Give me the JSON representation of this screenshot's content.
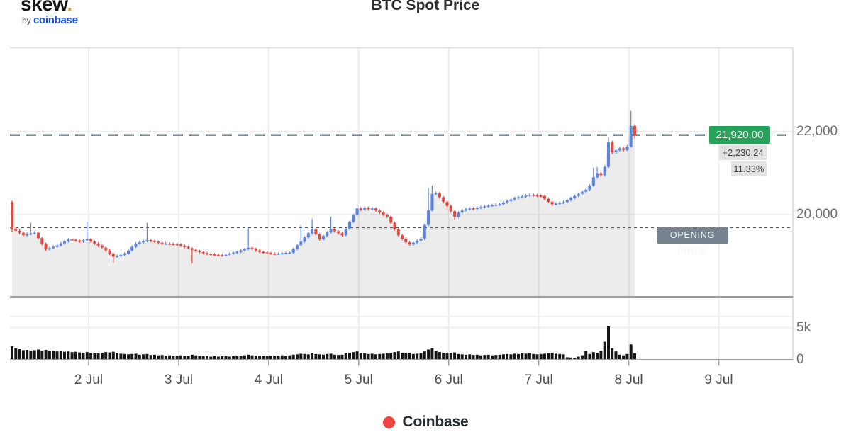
{
  "header": {
    "logo_word": "skew",
    "logo_dot": ".",
    "logo_by": "by ",
    "logo_brand": "coinbase",
    "title": "BTC Spot Price"
  },
  "price_panel": {
    "current_price_label": "21,920.00",
    "change_label": "+2,230.24",
    "change_pct_label": "11.33%",
    "opening_price_label": "OPENING PRICE"
  },
  "legend": {
    "series_label": "Coinbase"
  },
  "colors": {
    "candle_up": "#5c84e0",
    "candle_down": "#e5463e",
    "volume_bar": "#151515",
    "current_price_badge": "#27a25a",
    "change_badge_bg": "#e3e3e3",
    "opening_badge_bg": "#76838e",
    "legend_dot": "#ee4540",
    "coinbase_blue": "#1652f0",
    "logo_dot": "#e8a33d",
    "current_price_line": "#37474f",
    "opening_price_line": "#3a3a3a"
  },
  "chart_data": {
    "type": "candlestick",
    "title": "BTC Spot Price",
    "series_name": "Coinbase",
    "interval_hours": 1,
    "x_axis_day_labels": [
      "2 Jul",
      "3 Jul",
      "4 Jul",
      "5 Jul",
      "6 Jul",
      "7 Jul",
      "8 Jul",
      "9 Jul"
    ],
    "price_axis": {
      "ticks": [
        {
          "value": 22000,
          "label": "22,000"
        },
        {
          "value": 20000,
          "label": "20,000"
        }
      ]
    },
    "volume_axis": {
      "ticks": [
        {
          "value": 5000,
          "label": "5k"
        },
        {
          "value": 0,
          "label": "0"
        }
      ]
    },
    "current_price": 21920.0,
    "price_change": 2230.24,
    "price_change_pct": 11.33,
    "opening_price": 19690,
    "ohlcv": [
      [
        20300,
        20340,
        19580,
        19660,
        2100
      ],
      [
        19660,
        19700,
        19575,
        19610,
        1800
      ],
      [
        19610,
        19645,
        19525,
        19560,
        1650
      ],
      [
        19560,
        19595,
        19465,
        19500,
        1500
      ],
      [
        19500,
        19565,
        19470,
        19530,
        1550
      ],
      [
        19530,
        19800,
        19500,
        19545,
        1450
      ],
      [
        19545,
        19600,
        19515,
        19560,
        1500
      ],
      [
        19560,
        19590,
        19395,
        19430,
        1600
      ],
      [
        19430,
        19460,
        19255,
        19290,
        1450
      ],
      [
        19290,
        19320,
        19125,
        19160,
        1550
      ],
      [
        19160,
        19225,
        19130,
        19190,
        1350
      ],
      [
        19190,
        19260,
        19160,
        19225,
        1400
      ],
      [
        19225,
        19290,
        19195,
        19255,
        1300
      ],
      [
        19255,
        19340,
        19225,
        19305,
        1350
      ],
      [
        19305,
        19390,
        19275,
        19355,
        1250
      ],
      [
        19355,
        19435,
        19325,
        19400,
        1300
      ],
      [
        19400,
        19430,
        19360,
        19390,
        1200
      ],
      [
        19390,
        19420,
        19340,
        19370,
        1250
      ],
      [
        19370,
        19400,
        19320,
        19350,
        1150
      ],
      [
        19350,
        19415,
        19320,
        19380,
        1100
      ],
      [
        19380,
        19830,
        19350,
        19405,
        1200
      ],
      [
        19405,
        19435,
        19315,
        19350,
        1050
      ],
      [
        19350,
        19380,
        19265,
        19300,
        1100
      ],
      [
        19300,
        19330,
        19215,
        19250,
        1000
      ],
      [
        19250,
        19280,
        19170,
        19205,
        1100
      ],
      [
        19205,
        19235,
        19100,
        19135,
        1200
      ],
      [
        19135,
        19165,
        19020,
        19055,
        1150
      ],
      [
        19055,
        19085,
        18835,
        18985,
        1250
      ],
      [
        18985,
        19040,
        18955,
        19005,
        1000
      ],
      [
        19005,
        19065,
        18975,
        19030,
        950
      ],
      [
        19030,
        19090,
        19000,
        19055,
        900
      ],
      [
        19055,
        19170,
        19025,
        19135,
        850
      ],
      [
        19135,
        19255,
        19105,
        19220,
        900
      ],
      [
        19220,
        19335,
        19190,
        19300,
        950
      ],
      [
        19300,
        19365,
        19270,
        19330,
        800
      ],
      [
        19330,
        19395,
        19300,
        19360,
        850
      ],
      [
        19360,
        19800,
        19330,
        19385,
        900
      ],
      [
        19385,
        19415,
        19335,
        19365,
        750
      ],
      [
        19365,
        19395,
        19315,
        19345,
        800
      ],
      [
        19345,
        19375,
        19290,
        19320,
        700
      ],
      [
        19320,
        19350,
        19270,
        19300,
        750
      ],
      [
        19300,
        19335,
        19270,
        19300,
        650
      ],
      [
        19300,
        19330,
        19260,
        19290,
        700
      ],
      [
        19290,
        19320,
        19255,
        19285,
        600
      ],
      [
        19285,
        19315,
        19250,
        19280,
        650
      ],
      [
        19280,
        19310,
        19220,
        19250,
        700
      ],
      [
        19250,
        19280,
        19190,
        19220,
        600
      ],
      [
        19220,
        19250,
        19155,
        19185,
        650
      ],
      [
        19185,
        19215,
        18825,
        19150,
        800
      ],
      [
        19150,
        19180,
        19090,
        19120,
        700
      ],
      [
        19120,
        19150,
        19065,
        19095,
        600
      ],
      [
        19095,
        19125,
        19040,
        19070,
        550
      ],
      [
        19070,
        19100,
        19020,
        19050,
        600
      ],
      [
        19050,
        19080,
        19010,
        19040,
        500
      ],
      [
        19040,
        19070,
        19000,
        19030,
        550
      ],
      [
        19030,
        19060,
        18990,
        19020,
        500
      ],
      [
        19020,
        19050,
        18980,
        19010,
        550
      ],
      [
        19010,
        19065,
        18985,
        19035,
        600
      ],
      [
        19035,
        19090,
        19005,
        19060,
        500
      ],
      [
        19060,
        19110,
        19030,
        19080,
        550
      ],
      [
        19080,
        19130,
        19050,
        19100,
        650
      ],
      [
        19100,
        19165,
        19070,
        19135,
        600
      ],
      [
        19135,
        19200,
        19105,
        19170,
        700
      ],
      [
        19170,
        19680,
        19140,
        19200,
        800
      ],
      [
        19200,
        19230,
        19140,
        19170,
        700
      ],
      [
        19170,
        19200,
        19105,
        19135,
        650
      ],
      [
        19135,
        19165,
        19070,
        19100,
        600
      ],
      [
        19100,
        19130,
        19060,
        19090,
        550
      ],
      [
        19090,
        19120,
        19045,
        19075,
        600
      ],
      [
        19075,
        19105,
        19030,
        19060,
        650
      ],
      [
        19060,
        19090,
        19020,
        19050,
        600
      ],
      [
        19050,
        19090,
        19025,
        19060,
        650
      ],
      [
        19060,
        19100,
        19030,
        19070,
        700
      ],
      [
        19070,
        19105,
        19040,
        19075,
        650
      ],
      [
        19075,
        19110,
        19045,
        19080,
        700
      ],
      [
        19080,
        19200,
        19050,
        19170,
        800
      ],
      [
        19170,
        19290,
        19140,
        19260,
        850
      ],
      [
        19260,
        19750,
        19230,
        19350,
        950
      ],
      [
        19350,
        19480,
        19320,
        19450,
        900
      ],
      [
        19450,
        19580,
        19420,
        19550,
        850
      ],
      [
        19550,
        19900,
        19520,
        19650,
        1000
      ],
      [
        19650,
        19680,
        19490,
        19525,
        900
      ],
      [
        19525,
        19555,
        19365,
        19400,
        850
      ],
      [
        19400,
        19515,
        19370,
        19485,
        800
      ],
      [
        19485,
        19600,
        19455,
        19570,
        900
      ],
      [
        19570,
        19950,
        19540,
        19650,
        950
      ],
      [
        19650,
        19680,
        19565,
        19600,
        800
      ],
      [
        19600,
        19630,
        19515,
        19550,
        750
      ],
      [
        19550,
        19580,
        19465,
        19500,
        800
      ],
      [
        19500,
        19690,
        19470,
        19660,
        1000
      ],
      [
        19660,
        19855,
        19630,
        19825,
        1100
      ],
      [
        19825,
        20020,
        19795,
        19990,
        1200
      ],
      [
        19990,
        20250,
        19960,
        20150,
        1300
      ],
      [
        20150,
        20180,
        20085,
        20120,
        1100
      ],
      [
        20120,
        20195,
        20090,
        20160,
        1000
      ],
      [
        20160,
        20190,
        20095,
        20130,
        900
      ],
      [
        20130,
        20185,
        20100,
        20150,
        950
      ],
      [
        20150,
        20180,
        20065,
        20100,
        850
      ],
      [
        20100,
        20130,
        20015,
        20050,
        900
      ],
      [
        20050,
        20080,
        19965,
        20000,
        950
      ],
      [
        20000,
        20030,
        19915,
        19950,
        1000
      ],
      [
        19950,
        19980,
        19765,
        19800,
        1100
      ],
      [
        19800,
        19830,
        19615,
        19650,
        1200
      ],
      [
        19650,
        19680,
        19465,
        19500,
        1300
      ],
      [
        19500,
        19530,
        19385,
        19420,
        1100
      ],
      [
        19420,
        19450,
        19295,
        19330,
        1000
      ],
      [
        19330,
        19360,
        19245,
        19280,
        1050
      ],
      [
        19280,
        19355,
        19250,
        19320,
        900
      ],
      [
        19320,
        19405,
        19290,
        19370,
        950
      ],
      [
        19370,
        19455,
        19340,
        19420,
        1000
      ],
      [
        19420,
        19785,
        19390,
        19750,
        1300
      ],
      [
        19750,
        20640,
        19720,
        20100,
        1600
      ],
      [
        20100,
        20700,
        20070,
        20500,
        1800
      ],
      [
        20500,
        20555,
        20470,
        20520,
        1400
      ],
      [
        20520,
        20550,
        20385,
        20420,
        1200
      ],
      [
        20420,
        20450,
        20275,
        20310,
        1100
      ],
      [
        20310,
        20340,
        20175,
        20210,
        1000
      ],
      [
        20210,
        20240,
        20045,
        20080,
        1050
      ],
      [
        20080,
        20110,
        19870,
        19950,
        1150
      ],
      [
        19950,
        20085,
        19920,
        20050,
        900
      ],
      [
        20050,
        20135,
        20020,
        20100,
        850
      ],
      [
        20100,
        20165,
        20070,
        20130,
        800
      ],
      [
        20130,
        20185,
        20100,
        20150,
        850
      ],
      [
        20150,
        20180,
        20105,
        20140,
        750
      ],
      [
        20140,
        20195,
        20110,
        20160,
        800
      ],
      [
        20160,
        20215,
        20130,
        20180,
        700
      ],
      [
        20180,
        20235,
        20150,
        20200,
        750
      ],
      [
        20200,
        20250,
        20170,
        20215,
        800
      ],
      [
        20215,
        20265,
        20185,
        20230,
        700
      ],
      [
        20230,
        20275,
        20200,
        20240,
        750
      ],
      [
        20240,
        20285,
        20210,
        20250,
        800
      ],
      [
        20250,
        20325,
        20220,
        20290,
        850
      ],
      [
        20290,
        20365,
        20260,
        20330,
        900
      ],
      [
        20330,
        20400,
        20300,
        20365,
        850
      ],
      [
        20365,
        20435,
        20335,
        20400,
        950
      ],
      [
        20400,
        20455,
        20370,
        20420,
        900
      ],
      [
        20420,
        20475,
        20390,
        20440,
        1000
      ],
      [
        20440,
        20495,
        20410,
        20460,
        950
      ],
      [
        20460,
        20515,
        20430,
        20480,
        1050
      ],
      [
        20480,
        20510,
        20435,
        20470,
        900
      ],
      [
        20470,
        20500,
        20425,
        20460,
        850
      ],
      [
        20460,
        20490,
        20415,
        20450,
        900
      ],
      [
        20450,
        20480,
        20345,
        20380,
        950
      ],
      [
        20380,
        20410,
        20275,
        20310,
        1000
      ],
      [
        20310,
        20340,
        20215,
        20250,
        1100
      ],
      [
        20250,
        20300,
        20220,
        20265,
        950
      ],
      [
        20265,
        20315,
        20235,
        20280,
        900
      ],
      [
        20280,
        20335,
        20250,
        20300,
        850
      ],
      [
        20300,
        20385,
        20270,
        20350,
        400
      ],
      [
        20350,
        20435,
        20320,
        20400,
        350
      ],
      [
        20400,
        20485,
        20370,
        20450,
        300
      ],
      [
        20450,
        20535,
        20420,
        20500,
        500
      ],
      [
        20500,
        20585,
        20470,
        20550,
        700
      ],
      [
        20550,
        20635,
        20520,
        20600,
        1400
      ],
      [
        20600,
        20735,
        20570,
        20700,
        900
      ],
      [
        20700,
        21130,
        20670,
        20900,
        1200
      ],
      [
        20900,
        21150,
        20870,
        21000,
        1100
      ],
      [
        21000,
        21030,
        20905,
        20950,
        1400
      ],
      [
        20950,
        21185,
        20920,
        21150,
        2800
      ],
      [
        21150,
        21870,
        21120,
        21750,
        5200
      ],
      [
        21750,
        21780,
        21460,
        21500,
        1800
      ],
      [
        21500,
        21585,
        21470,
        21550,
        1300
      ],
      [
        21550,
        21635,
        21520,
        21600,
        800
      ],
      [
        21600,
        21630,
        21520,
        21560,
        700
      ],
      [
        21560,
        21675,
        21530,
        21640,
        900
      ],
      [
        21640,
        22500,
        21610,
        22140,
        2400
      ],
      [
        22140,
        22180,
        21840,
        21920,
        1000
      ]
    ]
  }
}
